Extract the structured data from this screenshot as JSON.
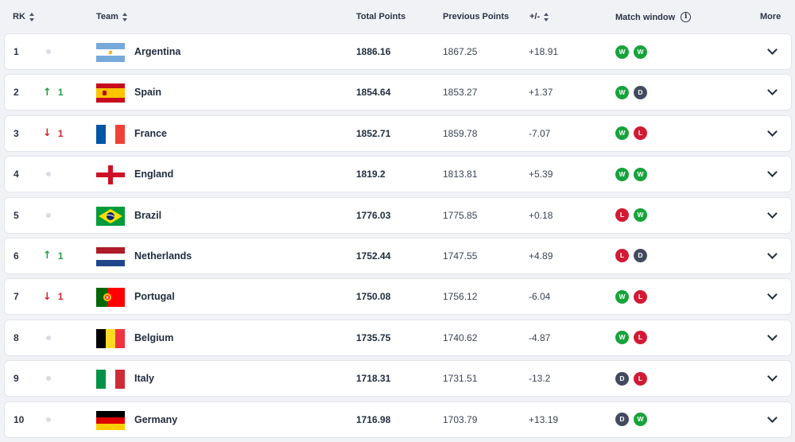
{
  "header": {
    "rk": "RK",
    "team": "Team",
    "total_points": "Total Points",
    "previous_points": "Previous Points",
    "plus_minus": "+/-",
    "match_window": "Match window",
    "more": "More"
  },
  "rows": [
    {
      "rank": "1",
      "change": "",
      "trend": "same",
      "team": "Argentina",
      "flag": "argentina",
      "total": "1886.16",
      "previous": "1867.25",
      "diff": "+18.91",
      "results": [
        "W",
        "W"
      ]
    },
    {
      "rank": "2",
      "change": "1",
      "trend": "up",
      "team": "Spain",
      "flag": "spain",
      "total": "1854.64",
      "previous": "1853.27",
      "diff": "+1.37",
      "results": [
        "W",
        "D"
      ]
    },
    {
      "rank": "3",
      "change": "1",
      "trend": "down",
      "team": "France",
      "flag": "france",
      "total": "1852.71",
      "previous": "1859.78",
      "diff": "-7.07",
      "results": [
        "W",
        "L"
      ]
    },
    {
      "rank": "4",
      "change": "",
      "trend": "same",
      "team": "England",
      "flag": "england",
      "total": "1819.2",
      "previous": "1813.81",
      "diff": "+5.39",
      "results": [
        "W",
        "W"
      ]
    },
    {
      "rank": "5",
      "change": "",
      "trend": "same",
      "team": "Brazil",
      "flag": "brazil",
      "total": "1776.03",
      "previous": "1775.85",
      "diff": "+0.18",
      "results": [
        "L",
        "W"
      ]
    },
    {
      "rank": "6",
      "change": "1",
      "trend": "up",
      "team": "Netherlands",
      "flag": "netherlands",
      "total": "1752.44",
      "previous": "1747.55",
      "diff": "+4.89",
      "results": [
        "L",
        "D"
      ]
    },
    {
      "rank": "7",
      "change": "1",
      "trend": "down",
      "team": "Portugal",
      "flag": "portugal",
      "total": "1750.08",
      "previous": "1756.12",
      "diff": "-6.04",
      "results": [
        "W",
        "L"
      ]
    },
    {
      "rank": "8",
      "change": "",
      "trend": "same",
      "team": "Belgium",
      "flag": "belgium",
      "total": "1735.75",
      "previous": "1740.62",
      "diff": "-4.87",
      "results": [
        "W",
        "L"
      ]
    },
    {
      "rank": "9",
      "change": "",
      "trend": "same",
      "team": "Italy",
      "flag": "italy",
      "total": "1718.31",
      "previous": "1731.51",
      "diff": "-13.2",
      "results": [
        "D",
        "L"
      ]
    },
    {
      "rank": "10",
      "change": "",
      "trend": "same",
      "team": "Germany",
      "flag": "germany",
      "total": "1716.98",
      "previous": "1703.79",
      "diff": "+13.19",
      "results": [
        "D",
        "W"
      ]
    }
  ],
  "colors": {
    "win": "#17a33b",
    "loss": "#d11a34",
    "draw": "#424a5e",
    "up": "#1f9d45",
    "down": "#d2232a"
  }
}
